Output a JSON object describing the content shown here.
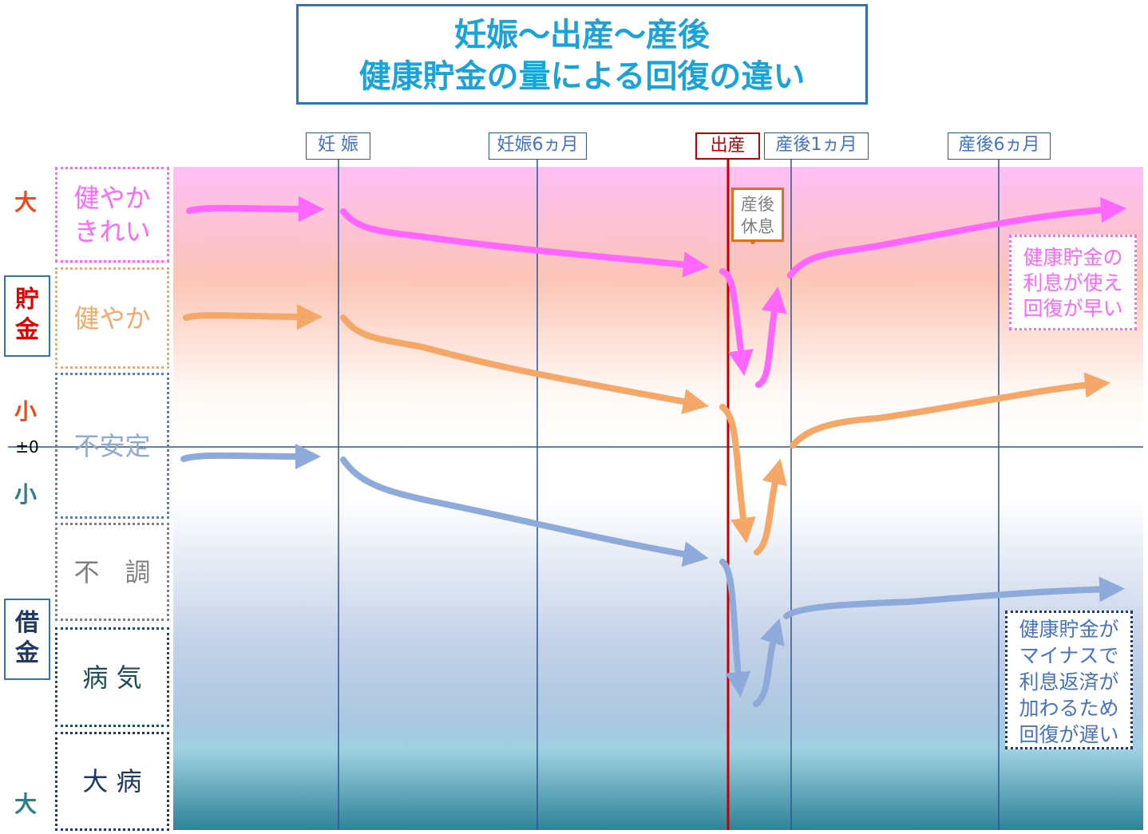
{
  "title": {
    "line1": "妊娠～出産～産後",
    "line2": "健康貯金の量による回復の違い"
  },
  "timeline": {
    "pregnancy": "妊 娠",
    "pregnancy_6m": "妊娠6ヵ月",
    "birth": "出産",
    "postpartum_1m": "産後1ヵ月",
    "postpartum_6m": "産後6ヵ月"
  },
  "states": {
    "healthy_beautiful": "健やか\nきれい",
    "healthy": "健やか",
    "unstable": "不安定",
    "unwell": "不　調",
    "sick": "病 気",
    "serious_illness": "大 病"
  },
  "scale": {
    "large_top": "大",
    "small_upper": "小",
    "zero": "±0",
    "small_lower": "小",
    "large_bottom": "大",
    "savings": "貯\n金",
    "debt": "借\n金"
  },
  "rest_label": "産後\n休息",
  "notes": {
    "fast_recovery": "健康貯金の\n利息が使え\n回復が早い",
    "slow_recovery": "健康貯金が\nマイナスで\n利息返済が\n加わるため\n回復が遅い"
  },
  "colors": {
    "pink": "#ff66ff",
    "orange": "#f4a767",
    "blue": "#8eaadb",
    "birth_line": "#c00000",
    "grid_line": "#2f5597",
    "title_text": "#1aa3d9"
  }
}
